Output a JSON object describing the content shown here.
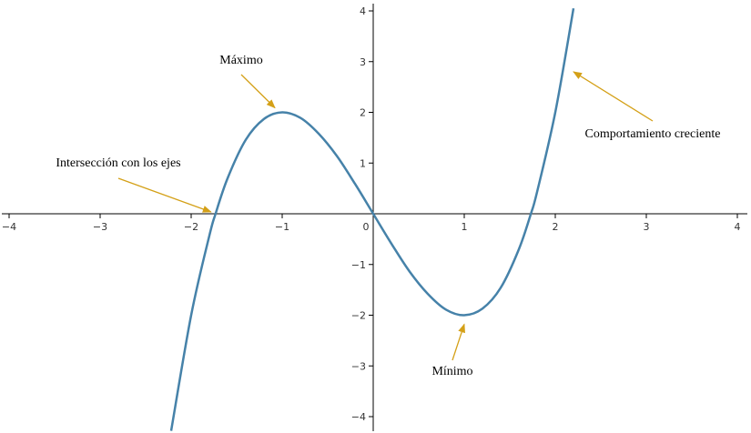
{
  "chart_data": {
    "type": "line",
    "title": "",
    "xlabel": "",
    "ylabel": "",
    "xlim": [
      -4,
      4
    ],
    "ylim": [
      -4,
      4
    ],
    "grid": false,
    "x_ticks": [
      -4,
      -3,
      -2,
      -1,
      0,
      1,
      2,
      3,
      4
    ],
    "y_ticks": [
      -4,
      -3,
      -2,
      -1,
      1,
      2,
      3,
      4
    ],
    "x_tick_labels": [
      "−4",
      "−3",
      "−2",
      "−1",
      "0",
      "1",
      "2",
      "3",
      "4"
    ],
    "y_tick_labels": [
      "−4",
      "−3",
      "−2",
      "−1",
      "1",
      "2",
      "3",
      "4"
    ],
    "series": [
      {
        "color": "#4682a9",
        "x": [
          -2.22,
          -2.0,
          -1.8,
          -1.732,
          -1.6,
          -1.4,
          -1.2,
          -1.0,
          -0.8,
          -0.6,
          -0.4,
          -0.2,
          0.0,
          0.2,
          0.4,
          0.6,
          0.8,
          1.0,
          1.2,
          1.4,
          1.6,
          1.732,
          1.8,
          2.0,
          2.2
        ],
        "y": [
          -4.28,
          -2.0,
          -0.43,
          0.0,
          0.7,
          1.46,
          1.87,
          2.0,
          1.89,
          1.58,
          1.14,
          0.59,
          0.0,
          -0.59,
          -1.14,
          -1.58,
          -1.89,
          -2.0,
          -1.87,
          -1.46,
          -0.7,
          0.0,
          0.43,
          2.0,
          4.05
        ]
      }
    ],
    "annotations": [
      {
        "text": "Máximo",
        "point": [
          -1,
          2
        ]
      },
      {
        "text": "Intersección con los ejes",
        "point": [
          -1.732,
          0
        ]
      },
      {
        "text": "Mínimo",
        "point": [
          1,
          -2
        ]
      },
      {
        "text": "Comportamiento creciente",
        "point": [
          2.2,
          2.8
        ]
      }
    ],
    "colors": {
      "curve": "#4682a9",
      "arrow": "#d4a017",
      "axis": "#000000"
    }
  }
}
